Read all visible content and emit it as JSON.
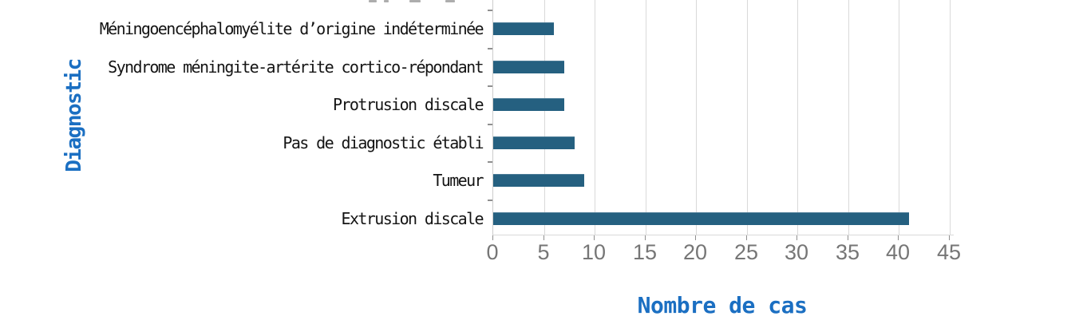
{
  "chart_data": {
    "type": "bar",
    "orientation": "horizontal",
    "categories": [
      "Méningoencéphalomyélite d’origine indéterminée",
      "Syndrome méningite-artérite cortico-répondant",
      "Protrusion discale",
      "Pas de diagnostic établi",
      "Tumeur",
      "Extrusion discale"
    ],
    "values": [
      6,
      7,
      7,
      8,
      9,
      41
    ],
    "xlabel": "Nombre de cas",
    "ylabel": "Diagnostic",
    "xlim": [
      0,
      45
    ],
    "xticks": [
      0,
      5,
      10,
      15,
      20,
      25,
      30,
      35,
      40,
      45
    ],
    "grid": "vertical",
    "legend": "none",
    "bar_color": "#256080",
    "axis_title_color": "#1b6fc2",
    "tick_label_color": "#767676",
    "category_label_color": "#141414",
    "gridline_color": "#d9d9d9",
    "background_color": "#ffffff"
  }
}
